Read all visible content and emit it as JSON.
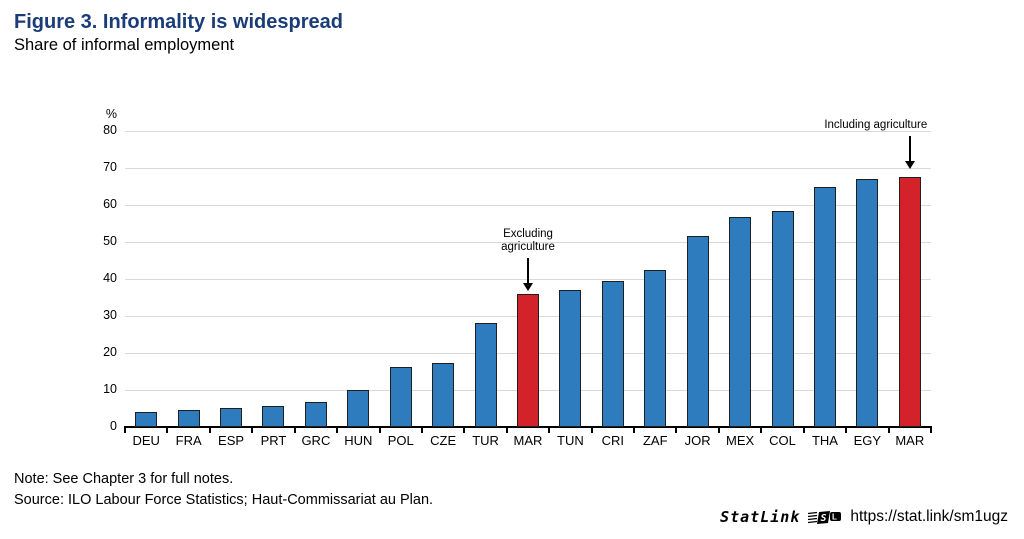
{
  "header": {
    "title": "Figure 3. Informality is widespread",
    "subtitle": "Share of informal employment"
  },
  "chart_data": {
    "type": "bar",
    "title": "Share of informal employment",
    "ylabel": "%",
    "xlabel": "",
    "ylim": [
      0,
      80
    ],
    "ytick_step": 10,
    "grid": "horizontal",
    "categories": [
      "DEU",
      "FRA",
      "ESP",
      "PRT",
      "GRC",
      "HUN",
      "POL",
      "CZE",
      "TUR",
      "MAR",
      "TUN",
      "CRI",
      "ZAF",
      "JOR",
      "MEX",
      "COL",
      "THA",
      "EGY",
      "MAR"
    ],
    "values": [
      4.1,
      4.6,
      5.2,
      5.7,
      6.8,
      10.1,
      16.1,
      17.2,
      28.1,
      36.0,
      37.0,
      39.4,
      42.4,
      51.7,
      56.7,
      58.4,
      65.0,
      67.0,
      67.7
    ],
    "highlight_indices": [
      9,
      18
    ],
    "colors": {
      "bar": "#2e7cbe",
      "highlight": "#d4222a",
      "bar_border": "#1f1f1f",
      "grid": "#d9d9d9",
      "axis": "#000000",
      "title": "#1a3c78"
    },
    "annotations": [
      {
        "label": "Excluding agriculture",
        "lines": [
          "Excluding",
          "agriculture"
        ],
        "bar_index": 9
      },
      {
        "label": "Including agriculture",
        "lines": [
          "Including agriculture"
        ],
        "bar_index": 18
      }
    ]
  },
  "footer": {
    "note": "Note: See Chapter 3 for full notes.",
    "source": "Source: ILO Labour Force Statistics; Haut-Commissariat au Plan.",
    "statlink_label": "StatLink",
    "statlink_url": "https://stat.link/sm1ugz"
  }
}
